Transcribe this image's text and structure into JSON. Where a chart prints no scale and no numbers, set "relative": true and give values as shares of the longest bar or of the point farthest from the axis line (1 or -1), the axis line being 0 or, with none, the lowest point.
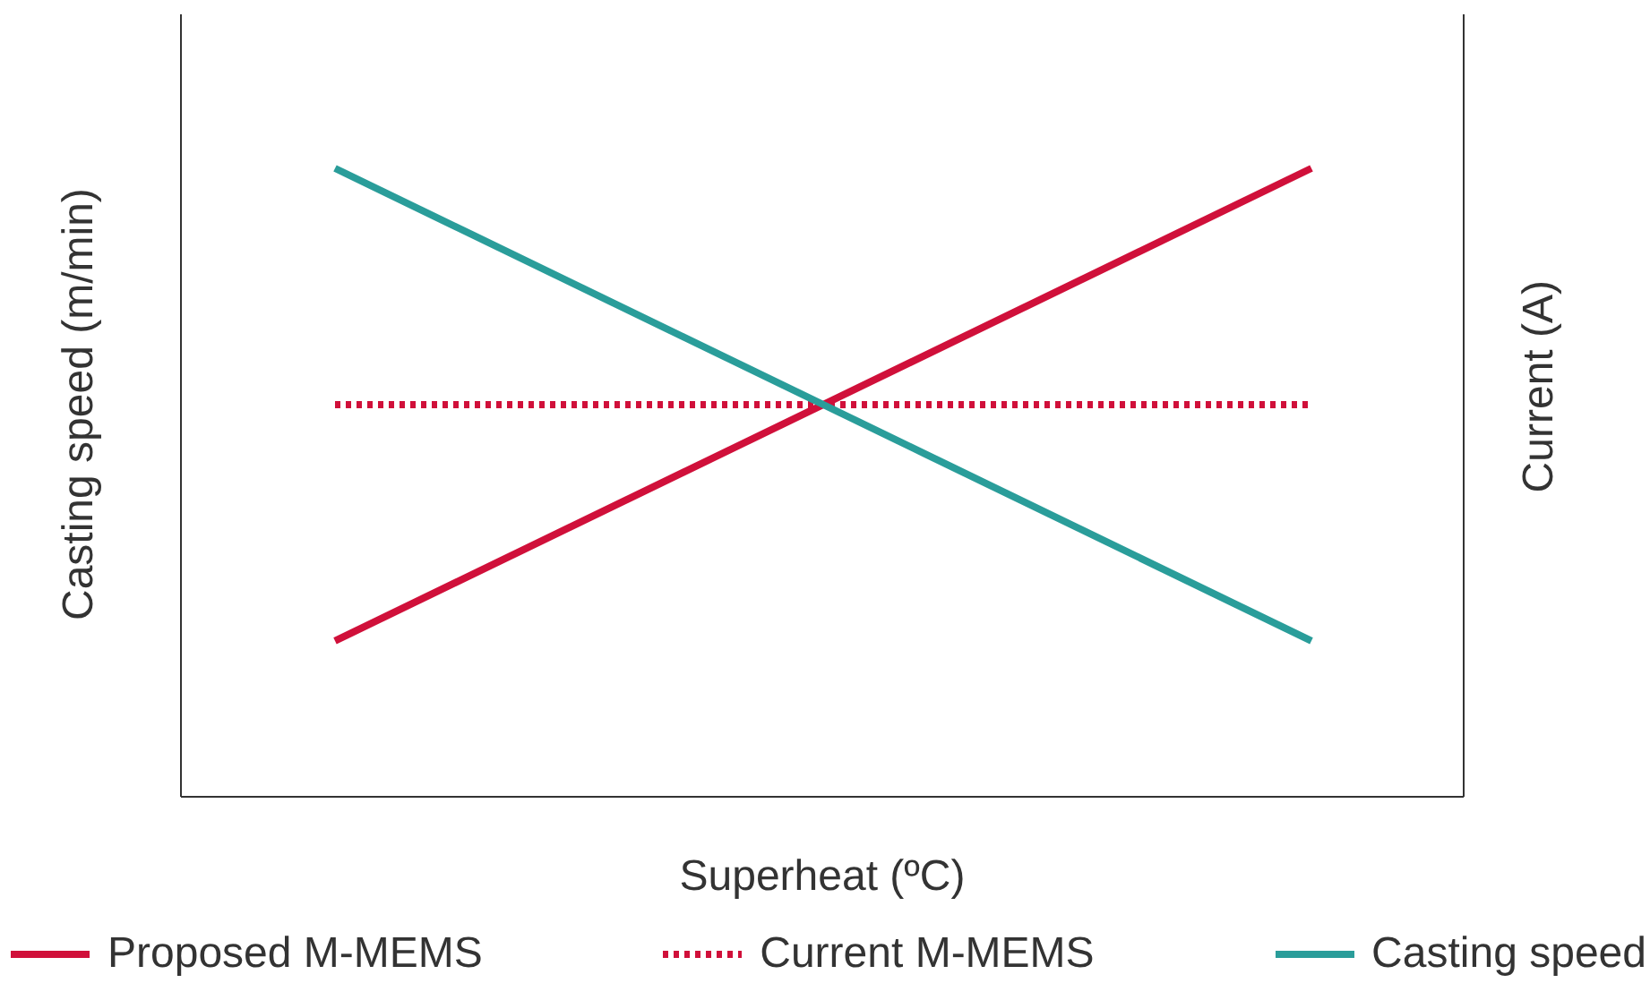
{
  "chart_data": {
    "type": "line",
    "relative": true,
    "xlabel": "Superheat (ºC)",
    "ylabel": "Casting speed (m/min)",
    "y2label": "Current (A)",
    "categories": [
      null,
      null
    ],
    "legend": "bottom",
    "series": [
      {
        "name": "Proposed M-MEMS",
        "color": "#d0103a",
        "values": [
          0.248,
          1
        ],
        "line_style": "solid"
      },
      {
        "name": "Current M-MEMS",
        "color": "#d0103a",
        "values": [
          0.624,
          0.624
        ],
        "line_style": "dotted"
      },
      {
        "name": "Casting speed",
        "color": "#2a9d9a",
        "values": [
          1,
          0.248
        ],
        "line_style": "solid"
      }
    ]
  }
}
